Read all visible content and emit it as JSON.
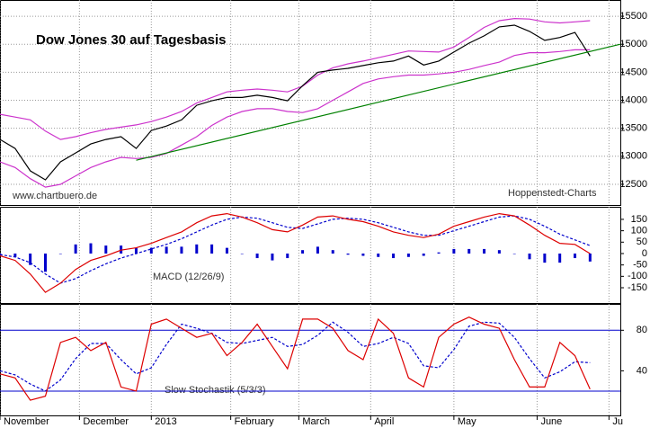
{
  "chart_data": [
    {
      "type": "line",
      "title": "Dow Jones 30 auf Tagesbasis",
      "source": "www.chartbuero.de",
      "credit": "Hoppenstedt-Charts",
      "x": [
        0,
        4,
        8,
        12,
        16,
        20,
        24,
        28,
        32,
        36,
        40,
        44,
        48,
        52,
        56,
        60,
        64,
        68,
        72,
        76,
        80,
        84,
        88,
        92,
        96,
        100,
        104,
        108,
        112,
        116,
        120,
        124,
        128,
        132,
        136,
        140,
        144,
        148,
        152,
        156
      ],
      "xlim": [
        0,
        164
      ],
      "ylim": [
        12130,
        15790
      ],
      "yticks": [
        12500,
        13000,
        13500,
        14000,
        14500,
        15000,
        15500
      ],
      "grid": true,
      "series": [
        {
          "color": "#cc33cc",
          "values": [
            13750,
            13700,
            13650,
            13450,
            13300,
            13350,
            13420,
            13480,
            13520,
            13560,
            13620,
            13700,
            13800,
            13950,
            14050,
            14150,
            14180,
            14200,
            14180,
            14150,
            14250,
            14450,
            14580,
            14650,
            14700,
            14760,
            14820,
            14880,
            14870,
            14860,
            14950,
            15120,
            15300,
            15420,
            15460,
            15450,
            15400,
            15380,
            15400,
            15420
          ]
        },
        {
          "color": "#cc33cc",
          "values": [
            12900,
            12800,
            12600,
            12450,
            12500,
            12650,
            12800,
            12900,
            12980,
            12960,
            12980,
            13050,
            13200,
            13350,
            13550,
            13700,
            13800,
            13850,
            13850,
            13800,
            13780,
            13850,
            14000,
            14150,
            14300,
            14380,
            14420,
            14450,
            14450,
            14470,
            14500,
            14550,
            14620,
            14680,
            14800,
            14850,
            14850,
            14870,
            14900,
            14900
          ]
        },
        {
          "color": "#000000",
          "values": [
            13300,
            13140,
            12740,
            12580,
            12900,
            13060,
            13220,
            13300,
            13350,
            13140,
            13460,
            13540,
            13650,
            13910,
            13990,
            14050,
            14050,
            14090,
            14050,
            13990,
            14260,
            14500,
            14540,
            14570,
            14620,
            14670,
            14700,
            14790,
            14630,
            14700,
            14860,
            15020,
            15150,
            15310,
            15340,
            15230,
            15070,
            15120,
            15210,
            14790
          ]
        },
        {
          "color": "#008000",
          "x": [
            36,
            164
          ],
          "values": [
            12930,
            15000
          ]
        }
      ]
    },
    {
      "type": "line",
      "label": "MACD (12/26/9)",
      "x": [
        0,
        4,
        8,
        12,
        16,
        20,
        24,
        28,
        32,
        36,
        40,
        44,
        48,
        52,
        56,
        60,
        64,
        68,
        72,
        76,
        80,
        84,
        88,
        92,
        96,
        100,
        104,
        108,
        112,
        116,
        120,
        124,
        128,
        132,
        136,
        140,
        144,
        148,
        152,
        156
      ],
      "xlim": [
        0,
        164
      ],
      "ylim": [
        -217,
        205
      ],
      "yticks": [
        -150,
        -100,
        -50,
        0,
        50,
        100,
        150
      ],
      "series": [
        {
          "color": "#0000cc",
          "style": "bar",
          "values": [
            -5,
            -15,
            -50,
            -80,
            0,
            40,
            45,
            35,
            35,
            25,
            25,
            30,
            30,
            40,
            40,
            25,
            0,
            -20,
            -30,
            -20,
            15,
            30,
            15,
            -5,
            -10,
            -15,
            -20,
            -15,
            -10,
            5,
            20,
            20,
            20,
            15,
            0,
            -25,
            -40,
            -40,
            -20,
            -35
          ]
        },
        {
          "color": "#0000cc",
          "dash": true,
          "values": [
            -5,
            -15,
            -40,
            -90,
            -130,
            -110,
            -75,
            -45,
            -20,
            0,
            20,
            40,
            65,
            95,
            125,
            150,
            160,
            155,
            135,
            115,
            110,
            130,
            150,
            155,
            150,
            135,
            115,
            95,
            80,
            80,
            100,
            120,
            140,
            160,
            165,
            150,
            120,
            85,
            60,
            35
          ]
        },
        {
          "color": "#dd0000",
          "values": [
            -10,
            -30,
            -90,
            -170,
            -130,
            -70,
            -30,
            -10,
            15,
            25,
            45,
            70,
            95,
            135,
            165,
            175,
            160,
            135,
            105,
            95,
            125,
            160,
            165,
            150,
            140,
            120,
            95,
            80,
            70,
            85,
            120,
            140,
            160,
            175,
            165,
            125,
            80,
            45,
            40,
            0
          ]
        }
      ]
    },
    {
      "type": "line",
      "label": "Slow Stochastik (5/3/3)",
      "x": [
        0,
        4,
        8,
        12,
        16,
        20,
        24,
        28,
        32,
        36,
        40,
        44,
        48,
        52,
        56,
        60,
        64,
        68,
        72,
        76,
        80,
        84,
        88,
        92,
        96,
        100,
        104,
        108,
        112,
        116,
        120,
        124,
        128,
        132,
        136,
        140,
        144,
        148,
        152,
        156
      ],
      "xlim": [
        0,
        164
      ],
      "ylim": [
        -4,
        106
      ],
      "yticks": [
        40,
        80
      ],
      "hlines": [
        20,
        80
      ],
      "hline_color": "#0000cc",
      "xticks": [
        {
          "value": 0,
          "label": "November"
        },
        {
          "value": 21,
          "label": "December"
        },
        {
          "value": 40,
          "label": "2013"
        },
        {
          "value": 61,
          "label": "February"
        },
        {
          "value": 79,
          "label": "March"
        },
        {
          "value": 98,
          "label": "April"
        },
        {
          "value": 120,
          "label": "May"
        },
        {
          "value": 142,
          "label": "June"
        },
        {
          "value": 161,
          "label": "Ju"
        }
      ],
      "series": [
        {
          "color": "#0000cc",
          "dash": true,
          "values": [
            40,
            36,
            27,
            20,
            31,
            52,
            67,
            67,
            51,
            37,
            43,
            66,
            86,
            82,
            77,
            68,
            67,
            70,
            73,
            64,
            66,
            75,
            88,
            78,
            64,
            67,
            73,
            67,
            45,
            43,
            61,
            84,
            88,
            87,
            73,
            52,
            33,
            39,
            49,
            48
          ]
        },
        {
          "color": "#dd0000",
          "values": [
            37,
            33,
            11,
            15,
            68,
            73,
            60,
            68,
            24,
            20,
            86,
            91,
            82,
            73,
            77,
            55,
            68,
            86,
            64,
            42,
            91,
            91,
            82,
            60,
            51,
            91,
            77,
            33,
            24,
            73,
            86,
            93,
            86,
            82,
            51,
            24,
            24,
            68,
            55,
            22
          ]
        }
      ]
    }
  ]
}
